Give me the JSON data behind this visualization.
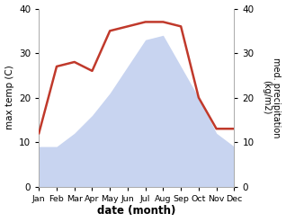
{
  "months": [
    "Jan",
    "Feb",
    "Mar",
    "Apr",
    "May",
    "Jun",
    "Jul",
    "Aug",
    "Sep",
    "Oct",
    "Nov",
    "Dec"
  ],
  "max_temp": [
    9,
    9,
    12,
    16,
    21,
    27,
    33,
    34,
    27,
    20,
    12,
    9
  ],
  "precipitation": [
    12,
    27,
    28,
    26,
    35,
    36,
    37,
    37,
    36,
    20,
    13,
    13
  ],
  "temp_fill_color": "#c8d4f0",
  "precip_color": "#c0392b",
  "ylim": [
    0,
    40
  ],
  "xlabel": "date (month)",
  "ylabel_left": "max temp (C)",
  "ylabel_right": "med. precipitation\n(kg/m2)",
  "fig_width": 3.18,
  "fig_height": 2.47,
  "dpi": 100
}
